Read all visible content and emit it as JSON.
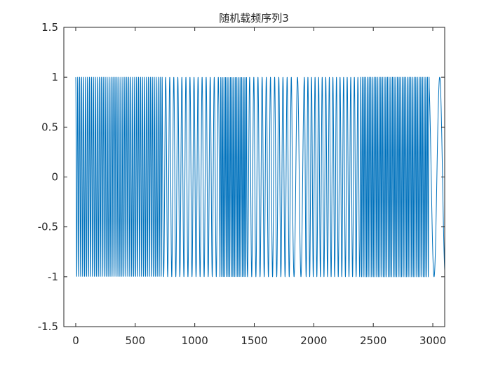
{
  "chart_data": {
    "type": "line",
    "title": "随机载频序列3",
    "xlabel": "",
    "ylabel": "",
    "xlim": [
      -100,
      3100
    ],
    "ylim": [
      -1.5,
      1.5
    ],
    "xticks": [
      0,
      500,
      1000,
      1500,
      2000,
      2500,
      3000
    ],
    "xtick_labels": [
      "0",
      "500",
      "1000",
      "1500",
      "2000",
      "2500",
      "3000"
    ],
    "yticks": [
      -1.5,
      -1,
      -0.5,
      0,
      0.5,
      1,
      1.5
    ],
    "ytick_labels": [
      "-1.5",
      "-1",
      "-0.5",
      "0",
      "0.5",
      "1",
      "1.5"
    ],
    "grid": false,
    "line_color": "#0072BD",
    "series": [
      {
        "signal": "cos",
        "amplitude": 1,
        "x_start": 0,
        "x_end": 3100,
        "segments": [
          {
            "x_from": 0,
            "x_to": 730,
            "period": 16.5
          },
          {
            "x_from": 730,
            "x_to": 1210,
            "period": 34
          },
          {
            "x_from": 1210,
            "x_to": 1440,
            "period": 13.5
          },
          {
            "x_from": 1440,
            "x_to": 1820,
            "period": 35
          },
          {
            "x_from": 1820,
            "x_to": 1920,
            "period": 58
          },
          {
            "x_from": 1920,
            "x_to": 2390,
            "period": 30
          },
          {
            "x_from": 2390,
            "x_to": 2970,
            "period": 14
          },
          {
            "x_from": 2970,
            "x_to": 3100,
            "period": 95
          }
        ]
      }
    ]
  }
}
